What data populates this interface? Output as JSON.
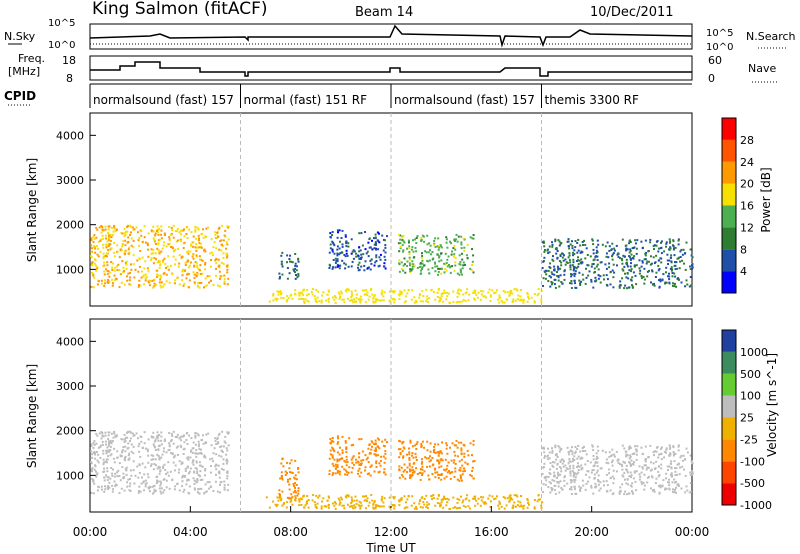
{
  "header": {
    "station": "King Salmon (fitACF)",
    "beam": "Beam 14",
    "date": "10/Dec/2011"
  },
  "noise_panel": {
    "left_label": "N.Sky",
    "right_label": "N.Search",
    "left_ticks": [
      "10^5",
      "10^0"
    ],
    "right_ticks": [
      "10^5",
      "10^0"
    ]
  },
  "freq_panel": {
    "left_label_1": "Freq.",
    "left_label_2": "[MHz]",
    "right_label": "Nave",
    "left_ticks": [
      "18",
      "8"
    ],
    "right_ticks": [
      "60",
      "0"
    ]
  },
  "cpid": {
    "label": "CPID",
    "segments": [
      {
        "name": "normalsound (fast) 157",
        "start": 0.0,
        "end": 6.0
      },
      {
        "name": "normal (fast) 151 RF",
        "start": 6.0,
        "end": 12.0,
        "rf_tag": "RF"
      },
      {
        "name": "normalsound (fast) 157",
        "start": 12.0,
        "end": 18.0
      },
      {
        "name": "themis 3300 RF",
        "start": 18.0,
        "end": 24.0,
        "rf_tag": "RF"
      }
    ]
  },
  "power_panel": {
    "ylabel": "Slant Range [km]",
    "yticks": [
      "4000",
      "3000",
      "2000",
      "1000"
    ],
    "colorbar_label": "Power [dB]",
    "colorbar_ticks": [
      "28",
      "24",
      "20",
      "16",
      "12",
      "8",
      "4"
    ],
    "colors": [
      "#0000ff",
      "#1f4fa8",
      "#2e7d32",
      "#4caf50",
      "#f5e000",
      "#ff9900",
      "#ff5500",
      "#ff0000"
    ]
  },
  "velocity_panel": {
    "ylabel": "Slant Range [km]",
    "yticks": [
      "4000",
      "3000",
      "2000",
      "1000"
    ],
    "colorbar_label": "Velocity [m s^-1]",
    "colorbar_ticks": [
      "1000",
      "500",
      "100",
      "25",
      "-25",
      "-100",
      "-500",
      "-1000"
    ],
    "colors": [
      "#2040a0",
      "#3c8c60",
      "#66cc33",
      "#bdbdbd",
      "#f0b000",
      "#ff8800",
      "#ff4400",
      "#ee0000"
    ]
  },
  "x_axis": {
    "label": "Time UT",
    "ticks": [
      "00:00",
      "04:00",
      "08:00",
      "12:00",
      "16:00",
      "20:00",
      "00:00"
    ]
  },
  "chart_data": {
    "type": "heatmap",
    "title": "King Salmon (fitACF)  Beam 14  10/Dec/2011",
    "xlabel": "Time UT",
    "ylabel": "Slant Range [km]",
    "xlim_hours": [
      0,
      24
    ],
    "ylim_km": [
      180,
      4500
    ],
    "grid": false,
    "series": [
      {
        "name": "Power [dB]",
        "regions": [
          {
            "t0": 0.0,
            "t1": 5.5,
            "r0": 600,
            "r1": 2000,
            "level": 20
          },
          {
            "t0": 7.5,
            "t1": 8.3,
            "r0": 800,
            "r1": 1400,
            "level": 8
          },
          {
            "t0": 9.5,
            "t1": 11.8,
            "r0": 1000,
            "r1": 1900,
            "level": 6
          },
          {
            "t0": 12.2,
            "t1": 15.3,
            "r0": 900,
            "r1": 1800,
            "level": 14
          },
          {
            "t0": 18.0,
            "t1": 24.0,
            "r0": 600,
            "r1": 1700,
            "level": 8
          }
        ]
      },
      {
        "name": "Velocity [m s^-1]",
        "regions": [
          {
            "t0": 0.0,
            "t1": 5.5,
            "r0": 600,
            "r1": 2000,
            "level": 0
          },
          {
            "t0": 7.5,
            "t1": 8.3,
            "r0": 500,
            "r1": 1400,
            "level": -300
          },
          {
            "t0": 9.5,
            "t1": 11.8,
            "r0": 1000,
            "r1": 1900,
            "level": -200
          },
          {
            "t0": 12.2,
            "t1": 15.3,
            "r0": 900,
            "r1": 1800,
            "level": -150
          },
          {
            "t0": 18.0,
            "t1": 24.0,
            "r0": 600,
            "r1": 1700,
            "level": 0
          }
        ]
      }
    ]
  }
}
